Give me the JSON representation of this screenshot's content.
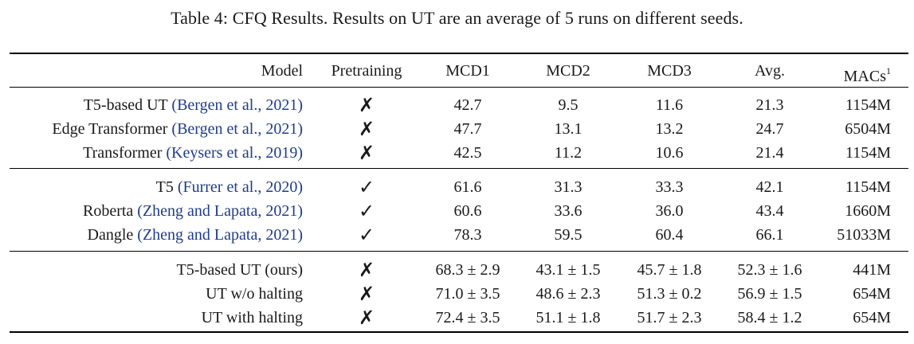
{
  "caption": "Table 4: CFQ Results. Results on UT are an average of 5 runs on different seeds.",
  "header": {
    "model": "Model",
    "pretraining": "Pretraining",
    "mcd1": "MCD1",
    "mcd2": "MCD2",
    "mcd3": "MCD3",
    "avg": "Avg.",
    "macs": "MACs",
    "macs_sup": "1"
  },
  "rows": [
    {
      "model": "T5-based UT",
      "cite": "(Bergen et al., 2021)",
      "pretraining": "✗",
      "mcd1": "42.7",
      "mcd2": "9.5",
      "mcd3": "11.6",
      "avg": "21.3",
      "macs": "1154M"
    },
    {
      "model": "Edge Transformer",
      "cite": "(Bergen et al., 2021)",
      "pretraining": "✗",
      "mcd1": "47.7",
      "mcd2": "13.1",
      "mcd3": "13.2",
      "avg": "24.7",
      "macs": "6504M"
    },
    {
      "model": "Transformer",
      "cite": "(Keysers et al., 2019)",
      "pretraining": "✗",
      "mcd1": "42.5",
      "mcd2": "11.2",
      "mcd3": "10.6",
      "avg": "21.4",
      "macs": "1154M"
    },
    {
      "model": "T5",
      "cite": "(Furrer et al., 2020)",
      "pretraining": "✓",
      "mcd1": "61.6",
      "mcd2": "31.3",
      "mcd3": "33.3",
      "avg": "42.1",
      "macs": "1154M"
    },
    {
      "model": "Roberta",
      "cite": "(Zheng and Lapata, 2021)",
      "pretraining": "✓",
      "mcd1": "60.6",
      "mcd2": "33.6",
      "mcd3": "36.0",
      "avg": "43.4",
      "macs": "1660M"
    },
    {
      "model": "Dangle",
      "cite": "(Zheng and Lapata, 2021)",
      "pretraining": "✓",
      "mcd1": "78.3",
      "mcd2": "59.5",
      "mcd3": "60.4",
      "avg": "66.1",
      "macs": "51033M"
    },
    {
      "model": "T5-based UT (ours)",
      "cite": "",
      "pretraining": "✗",
      "mcd1": "68.3 ± 2.9",
      "mcd2": "43.1 ± 1.5",
      "mcd3": "45.7 ± 1.8",
      "avg": "52.3 ± 1.6",
      "macs": "441M"
    },
    {
      "model": "UT w/o halting",
      "cite": "",
      "pretraining": "✗",
      "mcd1": "71.0 ± 3.5",
      "mcd2": "48.6 ± 2.3",
      "mcd3": "51.3 ± 0.2",
      "avg": "56.9 ± 1.5",
      "macs": "654M"
    },
    {
      "model": "UT with halting",
      "cite": "",
      "pretraining": "✗",
      "mcd1": "72.4 ± 3.5",
      "mcd2": "51.1 ± 1.8",
      "mcd3": "51.7 ± 2.3",
      "avg": "58.4 ± 1.2",
      "macs": "654M"
    }
  ]
}
